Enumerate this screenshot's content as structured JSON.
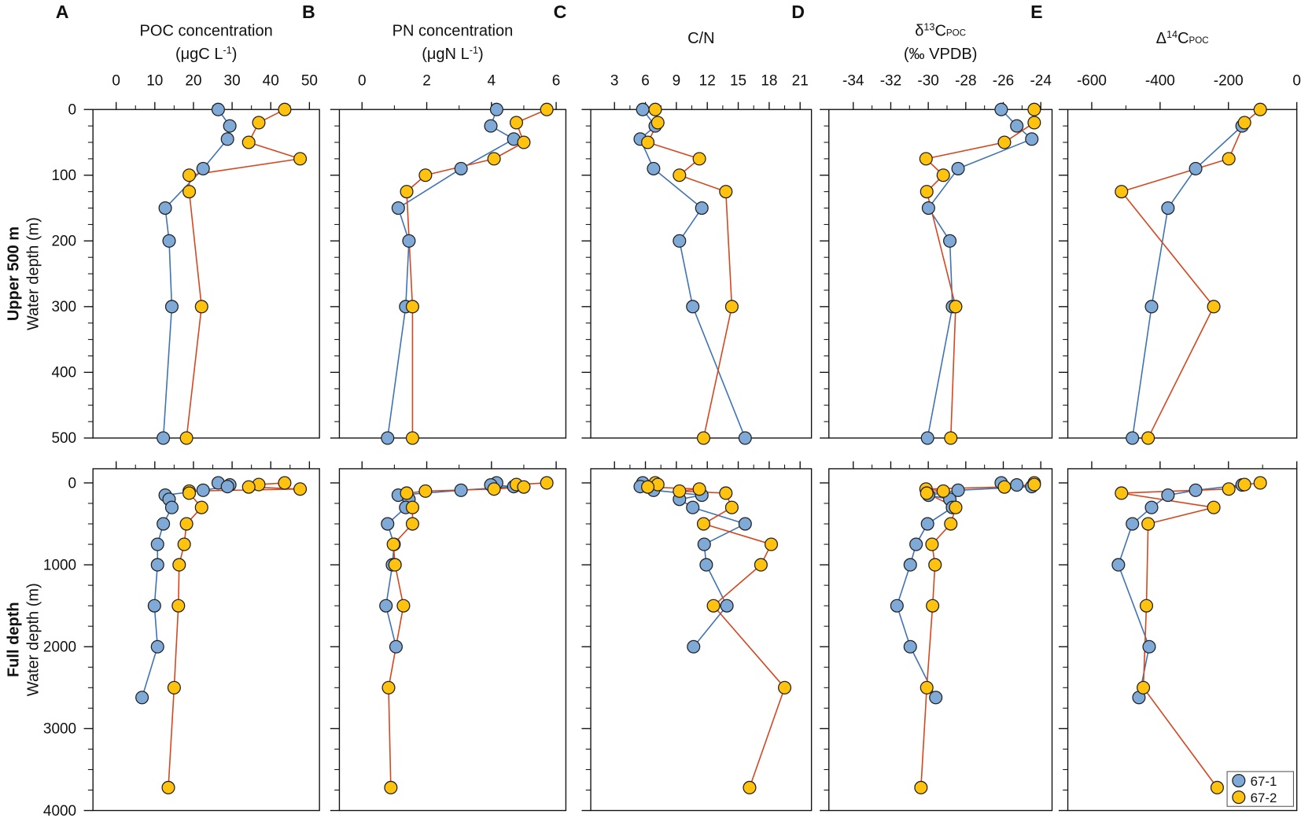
{
  "rows": [
    {
      "label": "Upper 500 m",
      "ylabel": "Water depth (m)",
      "ylim": [
        0,
        500
      ],
      "yticks": [
        0,
        100,
        200,
        300,
        400,
        500
      ]
    },
    {
      "label": "Full depth",
      "ylabel": "Water depth (m)",
      "ylim": [
        -173,
        4000
      ],
      "yticks": [
        0,
        1000,
        2000,
        3000,
        4000
      ]
    }
  ],
  "minor_divisions": {
    "x": 2,
    "y": 4
  },
  "chart_data": [
    {
      "type": "line",
      "label": "A",
      "title": [
        [
          {
            "text": "POC concentration"
          }
        ],
        [
          {
            "text": "(μgC L"
          },
          {
            "text": "-1",
            "style": "sup"
          },
          {
            "text": ")"
          }
        ]
      ],
      "xlim": [
        -6,
        52.6
      ],
      "xticks": [
        0,
        10,
        20,
        30,
        40,
        50
      ],
      "series": [
        {
          "name": "67-1",
          "color": "#7fa9d6",
          "line_color": "#3d72b5",
          "x": [
            26.4,
            29.4,
            28.8,
            22.5,
            12.7,
            13.7,
            14.4,
            12.2,
            10.7,
            10.7,
            9.9,
            10.7,
            6.7
          ],
          "y": [
            0,
            25,
            45,
            90,
            150,
            200,
            300,
            500,
            750,
            1000,
            1500,
            2000,
            2620
          ]
        },
        {
          "name": "67-2",
          "color": "#ffc20e",
          "line_color": "#d4461e",
          "x": [
            43.6,
            36.9,
            34.3,
            47.6,
            18.9,
            18.9,
            22.1,
            18.2,
            17.6,
            16.3,
            16.1,
            15.0,
            13.5
          ],
          "y": [
            0,
            20,
            50,
            75,
            100,
            125,
            300,
            500,
            750,
            1000,
            1500,
            2500,
            3720
          ]
        }
      ]
    },
    {
      "type": "line",
      "label": "B",
      "title": [
        [
          {
            "text": "PN concentration"
          }
        ],
        [
          {
            "text": "(μgN L"
          },
          {
            "text": "-1",
            "style": "sup"
          },
          {
            "text": ")"
          }
        ]
      ],
      "xlim": [
        -0.7,
        6.3
      ],
      "xticks": [
        0,
        2,
        4,
        6
      ],
      "series": [
        {
          "name": "67-1",
          "color": "#7fa9d6",
          "line_color": "#3d72b5",
          "x": [
            4.16,
            3.98,
            4.69,
            3.06,
            1.12,
            1.45,
            1.35,
            0.79,
            0.99,
            0.94,
            0.74,
            1.05
          ],
          "y": [
            0,
            25,
            45,
            90,
            150,
            200,
            300,
            500,
            750,
            1000,
            1500,
            2000
          ]
        },
        {
          "name": "67-2",
          "color": "#ffc20e",
          "line_color": "#d4461e",
          "x": [
            5.71,
            4.77,
            5.0,
            4.08,
            1.96,
            1.38,
            1.56,
            1.56,
            0.97,
            1.02,
            1.28,
            0.82,
            0.89
          ],
          "y": [
            0,
            20,
            50,
            75,
            100,
            125,
            300,
            500,
            750,
            1000,
            1500,
            2500,
            3720
          ]
        }
      ]
    },
    {
      "type": "line",
      "label": "C",
      "title": [
        [
          {
            "text": "C/N"
          }
        ]
      ],
      "xlim": [
        0.7,
        22.1
      ],
      "xticks": [
        3,
        6,
        9,
        12,
        15,
        18,
        21
      ],
      "series": [
        {
          "name": "67-1",
          "color": "#7fa9d6",
          "line_color": "#3d72b5",
          "x": [
            5.74,
            6.95,
            5.5,
            6.79,
            11.47,
            9.3,
            10.59,
            15.67,
            11.7,
            11.9,
            13.9,
            10.67
          ],
          "y": [
            0,
            25,
            45,
            90,
            150,
            200,
            300,
            500,
            750,
            1000,
            1500,
            2000
          ]
        },
        {
          "name": "67-2",
          "color": "#ffc20e",
          "line_color": "#d4461e",
          "x": [
            6.95,
            7.2,
            6.23,
            11.23,
            9.3,
            13.8,
            14.38,
            11.64,
            18.2,
            17.2,
            12.6,
            19.5,
            16.1
          ],
          "y": [
            0,
            20,
            50,
            75,
            100,
            125,
            300,
            500,
            750,
            1000,
            1500,
            2500,
            3720
          ]
        }
      ]
    },
    {
      "type": "line",
      "label": "D",
      "title": [
        [
          {
            "text": "δ"
          },
          {
            "text": "13",
            "style": "sup"
          },
          {
            "text": "C"
          },
          {
            "text": "POC",
            "style": "sub"
          }
        ],
        [
          {
            "text": "(‰ VPDB)"
          }
        ]
      ],
      "xlim": [
        -35.3,
        -23.4
      ],
      "xticks": [
        -34,
        -32,
        -30,
        -28,
        -26,
        -24
      ],
      "series": [
        {
          "name": "67-1",
          "color": "#7fa9d6",
          "line_color": "#3d72b5",
          "x": [
            -26.11,
            -25.28,
            -24.48,
            -28.41,
            -29.99,
            -28.85,
            -28.71,
            -30.04,
            -30.65,
            -30.96,
            -31.67,
            -30.96,
            -29.6
          ],
          "y": [
            0,
            25,
            45,
            90,
            150,
            200,
            300,
            500,
            750,
            1000,
            1500,
            2000,
            2620
          ]
        },
        {
          "name": "67-2",
          "color": "#ffc20e",
          "line_color": "#d4461e",
          "x": [
            -24.35,
            -24.35,
            -25.94,
            -30.12,
            -29.2,
            -30.08,
            -28.54,
            -28.8,
            -29.8,
            -29.64,
            -29.77,
            -30.08,
            -30.39
          ],
          "y": [
            0,
            20,
            50,
            75,
            100,
            125,
            300,
            500,
            750,
            1000,
            1500,
            2500,
            3720
          ]
        }
      ]
    },
    {
      "type": "line",
      "label": "E",
      "title": [
        [
          {
            "text": "Δ"
          },
          {
            "text": "14",
            "style": "sup"
          },
          {
            "text": "C"
          },
          {
            "text": "POC",
            "style": "sub"
          }
        ]
      ],
      "xlim": [
        -670,
        0
      ],
      "xticks": [
        -600,
        -400,
        -200,
        0
      ],
      "legend": "bottom-right",
      "series": [
        {
          "name": "67-1",
          "color": "#7fa9d6",
          "line_color": "#3d72b5",
          "x": [
            -160,
            -296,
            -377,
            -425,
            -481,
            -522,
            -432,
            -462
          ],
          "y": [
            25,
            90,
            150,
            300,
            500,
            1000,
            2000,
            2620
          ]
        },
        {
          "name": "67-2",
          "color": "#ffc20e",
          "line_color": "#d4461e",
          "x": [
            -107,
            -153,
            -199,
            -513,
            -243,
            -435,
            -440,
            -449,
            -233
          ],
          "y": [
            0,
            20,
            75,
            125,
            300,
            500,
            1500,
            2500,
            3720
          ]
        }
      ]
    }
  ]
}
